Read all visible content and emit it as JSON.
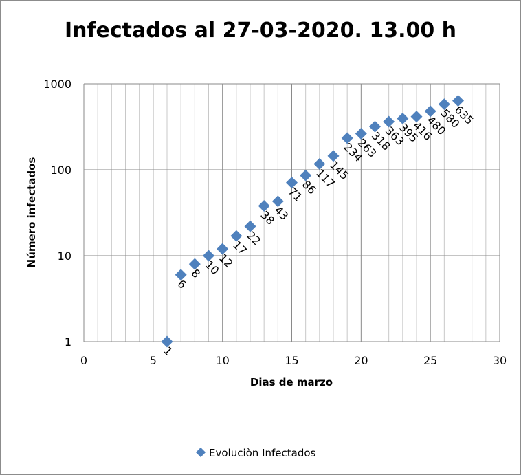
{
  "chart_data": {
    "type": "scatter",
    "title": "Infectados al 27-03-2020. 13.00 h",
    "xlabel": "Dias de marzo",
    "ylabel": "Número infectados",
    "xlim": [
      0,
      30
    ],
    "ylim": [
      1,
      1000
    ],
    "y_scale": "log",
    "x_ticks": [
      "0",
      "5",
      "10",
      "15",
      "20",
      "25",
      "30"
    ],
    "y_ticks": [
      "1",
      "10",
      "100",
      "1000"
    ],
    "grid": true,
    "legend_position": "bottom",
    "marker_color": "#4f81bd",
    "series": [
      {
        "name": "Evolución Infectados",
        "x": [
          6,
          7,
          8,
          9,
          10,
          11,
          12,
          13,
          14,
          15,
          16,
          17,
          18,
          19,
          20,
          21,
          22,
          23,
          24,
          25,
          26,
          27
        ],
        "y": [
          1,
          6,
          8,
          10,
          12,
          17,
          22,
          38,
          43,
          71,
          86,
          117,
          145,
          234,
          263,
          318,
          363,
          395,
          416,
          480,
          580,
          635
        ],
        "labels": [
          "1",
          "6",
          "8",
          "10",
          "12",
          "17",
          "22",
          "38",
          "43",
          "71",
          "86",
          "117",
          "145",
          "234",
          "263",
          "318",
          "363",
          "395",
          "416",
          "480",
          "580",
          "635"
        ]
      }
    ]
  },
  "legend": {
    "label": "Evoluciòn Infectados"
  }
}
